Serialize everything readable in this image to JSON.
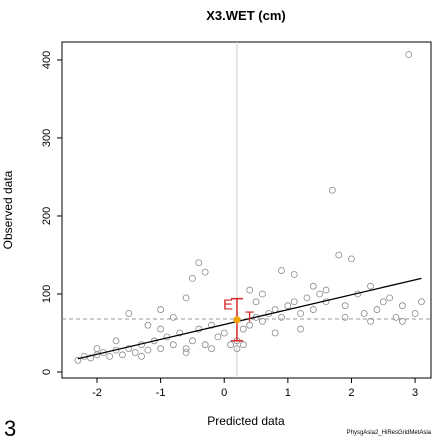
{
  "chart_data": {
    "type": "scatter",
    "title": "X3.WET (cm)",
    "x_label": "Predicted data",
    "y_label": "Observed data",
    "panel_label": "3",
    "footer": "PhysgAsia2_HiResGridMetAsia",
    "xlim": [
      -2.55,
      3.25
    ],
    "ylim": [
      -7.7,
      423
    ],
    "xticks": [
      -2,
      -1,
      0,
      1,
      2,
      3
    ],
    "yticks": [
      0,
      100,
      200,
      300,
      400
    ],
    "x": [
      -2.3,
      -2.2,
      -2.1,
      -2.0,
      -1.9,
      -1.8,
      -1.7,
      -1.6,
      -1.5,
      -1.4,
      -1.3,
      -1.2,
      -1.1,
      -1.0,
      -0.9,
      -0.8,
      -0.7,
      -0.6,
      -0.5,
      -0.4,
      -0.3,
      -0.2,
      -0.1,
      0,
      0.1,
      0.2,
      0.3,
      0.4,
      0.5,
      0.6,
      0.7,
      0.8,
      0.9,
      1.0,
      1.1,
      1.2,
      1.3,
      1.4,
      1.5,
      1.6,
      1.7,
      1.8,
      1.9,
      2.0,
      2.1,
      2.2,
      2.3,
      2.4,
      2.5,
      2.6,
      2.7,
      2.8,
      2.9,
      3.0,
      3.1,
      -1.5,
      -1,
      -0.6,
      -0.4,
      -0.3,
      -0.5,
      0.6,
      0.9,
      1.1,
      1.4,
      1.6,
      -1.2,
      -0.8,
      0.4,
      0.5,
      -2.0,
      -1.7,
      -1.0,
      0.3,
      0.8,
      1.2,
      1.9,
      2.3,
      2.8,
      0.2,
      -0.2,
      -0.6,
      -1.3
    ],
    "series": [
      {
        "name": "Observed",
        "color": "#8a8a8a",
        "values": [
          15,
          20,
          18,
          22,
          25,
          20,
          28,
          22,
          30,
          25,
          35,
          28,
          40,
          30,
          45,
          35,
          50,
          30,
          40,
          55,
          35,
          60,
          45,
          50,
          35,
          40,
          55,
          60,
          70,
          65,
          75,
          80,
          70,
          85,
          90,
          75,
          95,
          80,
          100,
          90,
          233,
          150,
          85,
          145,
          100,
          75,
          110,
          80,
          90,
          95,
          70,
          85,
          407,
          75,
          90,
          75,
          80,
          95,
          140,
          128,
          120,
          100,
          130,
          125,
          110,
          105,
          60,
          70,
          105,
          90,
          30,
          40,
          55,
          35,
          50,
          55,
          70,
          65,
          65,
          30,
          30,
          25,
          20
        ]
      }
    ],
    "fit_line": {
      "color": "#000000",
      "x": [
        -2.3,
        3.1
      ],
      "y": [
        17,
        120
      ]
    },
    "v_line": {
      "color": "#cccccc",
      "x": 0.2
    },
    "h_line": {
      "color": "#999999",
      "y": 68
    },
    "error_bar": {
      "color": "#d62728",
      "point_color": "#f0a500",
      "x": 0.2,
      "value": 67,
      "error": 27,
      "labels": [
        "E",
        "T"
      ]
    }
  }
}
